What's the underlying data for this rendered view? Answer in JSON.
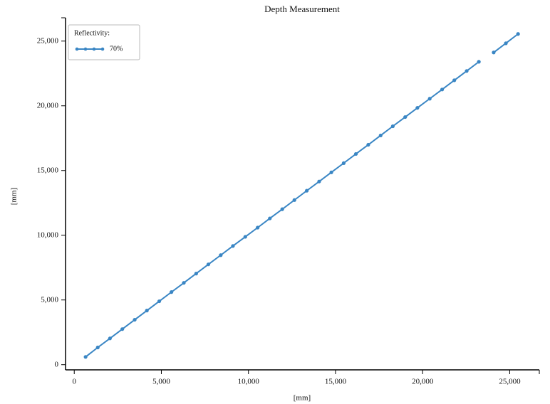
{
  "chart_data": {
    "type": "line",
    "title": "Depth Measurement",
    "x_label": "[mm]",
    "y_label": "[mm]",
    "legend_title": "Reflectivity:",
    "legend": "top-left",
    "x": [
      650,
      1350,
      2050,
      2760,
      3470,
      4170,
      4880,
      5580,
      6290,
      7000,
      7700,
      8410,
      9110,
      9820,
      10530,
      11230,
      11940,
      12640,
      13350,
      14060,
      14760,
      15470,
      16170,
      16880,
      17590,
      18290,
      19000,
      19700,
      20410,
      21120,
      21820,
      22530,
      23230,
      null,
      24080,
      24780,
      25480
    ],
    "series": [
      {
        "name": "70%",
        "color": "#3a86c4",
        "values": [
          600,
          1330,
          2030,
          2750,
          3470,
          4180,
          4900,
          5610,
          6320,
          7040,
          7750,
          8460,
          9170,
          9880,
          10590,
          11300,
          12010,
          12720,
          13440,
          14150,
          14860,
          15570,
          16280,
          16990,
          17710,
          18420,
          19130,
          19840,
          20550,
          21260,
          21970,
          22690,
          23400,
          null,
          24120,
          24830,
          25550
        ]
      }
    ],
    "xlim": [
      -500,
      26700
    ],
    "ylim": [
      -400,
      26800
    ],
    "xticks": [
      0,
      {
        "value": 5000,
        "label": "5,000"
      },
      {
        "value": 10000,
        "label": "10,000"
      },
      {
        "value": 15000,
        "label": "15,000"
      },
      {
        "value": 20000,
        "label": "20,000"
      },
      {
        "value": 25000,
        "label": "25,000"
      }
    ],
    "yticks": [
      0,
      {
        "value": 5000,
        "label": "5,000"
      },
      {
        "value": 10000,
        "label": "10,000"
      },
      {
        "value": 15000,
        "label": "15,000"
      },
      {
        "value": 20000,
        "label": "20,000"
      },
      {
        "value": 25000,
        "label": "25,000"
      }
    ],
    "grid": false
  }
}
